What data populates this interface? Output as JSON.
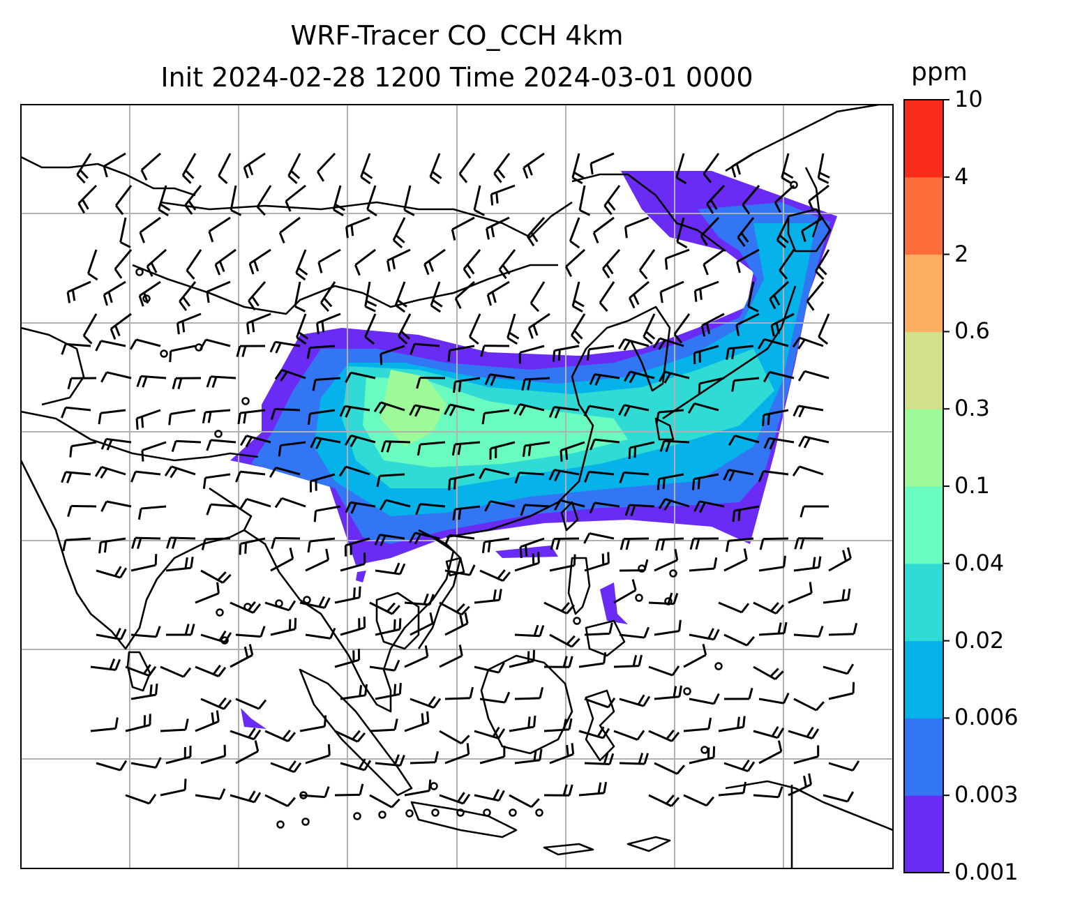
{
  "title": {
    "line1": "WRF-Tracer CO_CCH 4km",
    "line2": "Init 2024-02-28 1200 Time 2024-03-01 0000"
  },
  "colorbar": {
    "unit": "ppm",
    "levels": [
      "0.001",
      "0.003",
      "0.006",
      "0.02",
      "0.04",
      "0.1",
      "0.3",
      "0.6",
      "2",
      "4",
      "10"
    ],
    "colors": [
      "#6a2cf5",
      "#3276f4",
      "#05b2ea",
      "#2fdbd4",
      "#6afbc0",
      "#9cfa98",
      "#d3e08a",
      "#fbae62",
      "#fd6e3c",
      "#fa2b1b"
    ]
  },
  "map": {
    "gridlines": true,
    "gridline_color": "#b0b0b0",
    "coastline_color": "#000000",
    "barb_color": "#000000",
    "field_name": "CO_CCH"
  }
}
